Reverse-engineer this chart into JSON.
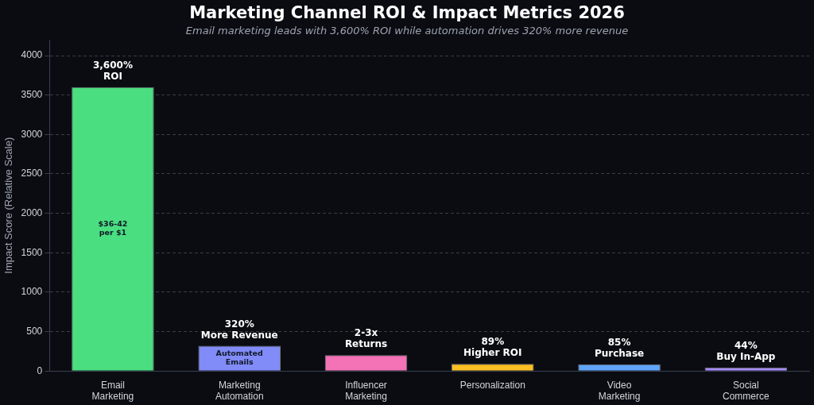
{
  "chart_data": {
    "type": "bar",
    "title": "Marketing Channel ROI & Impact Metrics 2026",
    "subtitle": "Email marketing leads with 3,600% ROI while automation drives 320% more revenue",
    "ylabel": "Impact Score (Relative Scale)",
    "categories": [
      "Email\nMarketing",
      "Marketing\nAutomation",
      "Influencer\nMarketing",
      "Personalization",
      "Video\nMarketing",
      "Social\nCommerce"
    ],
    "values": [
      3600,
      320,
      200,
      89,
      85,
      44
    ],
    "colors": [
      "#4ade80",
      "#818cf8",
      "#f472b6",
      "#fbbf24",
      "#60a5fa",
      "#a78bfa"
    ],
    "value_labels": [
      "3,600%\nROI",
      "320%\nMore Revenue",
      "2-3x\nReturns",
      "89%\nHigher ROI",
      "85%\nPurchase",
      "44%\nBuy In-App"
    ],
    "annotations": [
      "$36-42\nper $1",
      "Automated\nEmails"
    ],
    "ylim": [
      0,
      4200
    ],
    "yticks": [
      0,
      500,
      1000,
      1500,
      2000,
      2500,
      3000,
      3500,
      4000
    ],
    "grid": "y",
    "legend": false
  }
}
